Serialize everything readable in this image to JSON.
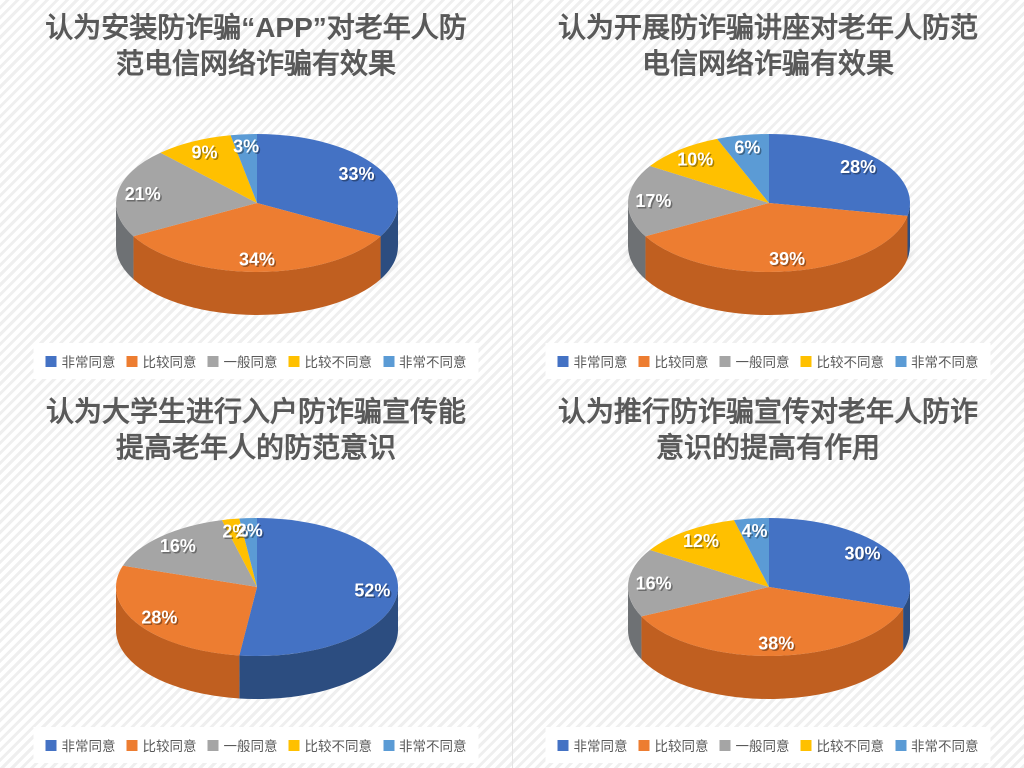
{
  "page": {
    "background_stripe_light": "#ffffff",
    "background_stripe_dark": "#efefef",
    "divider_color": "#e4e4e4",
    "title_color": "#595959",
    "legend_text_color": "#595959",
    "legend_background": "#ffffff",
    "data_label_color": "#ffffff"
  },
  "palette": {
    "series": [
      {
        "name": "非常同意",
        "top": "#4472C4",
        "side": "#2C4D80"
      },
      {
        "name": "比较同意",
        "top": "#ED7D31",
        "side": "#C05F20"
      },
      {
        "name": "一般同意",
        "top": "#A5A5A5",
        "side": "#6E7174"
      },
      {
        "name": "比较不同意",
        "top": "#FFC000",
        "side": "#B98A00"
      },
      {
        "name": "非常不同意",
        "top": "#5B9BD5",
        "side": "#3F6E99"
      }
    ]
  },
  "chart_data": [
    {
      "type": "pie",
      "style": "3d",
      "title": "认为安装防诈骗“APP”对老年人防范电信网络诈骗有效果",
      "title_lines": [
        "认为安装防诈骗“APP”对老年人防",
        "范电信网络诈骗有效果"
      ],
      "categories": [
        "非常同意",
        "比较同意",
        "一般同意",
        "比较不同意",
        "非常不同意"
      ],
      "values": [
        33,
        34,
        21,
        9,
        3
      ],
      "labels": [
        "33%",
        "34%",
        "21%",
        "9%",
        "3%"
      ],
      "legend_position": "bottom"
    },
    {
      "type": "pie",
      "style": "3d",
      "title": "认为开展防诈骗讲座对老年人防范电信网络诈骗有效果",
      "title_lines": [
        "认为开展防诈骗讲座对老年人防范",
        "电信网络诈骗有效果"
      ],
      "categories": [
        "非常同意",
        "比较同意",
        "一般同意",
        "比较不同意",
        "非常不同意"
      ],
      "values": [
        28,
        39,
        17,
        10,
        6
      ],
      "labels": [
        "28%",
        "39%",
        "17%",
        "10%",
        "6%"
      ],
      "legend_position": "bottom"
    },
    {
      "type": "pie",
      "style": "3d",
      "title": "认为大学生进行入户防诈骗宣传能提高老年人的防范意识",
      "title_lines": [
        "认为大学生进行入户防诈骗宣传能",
        "提高老年人的防范意识"
      ],
      "categories": [
        "非常同意",
        "比较同意",
        "一般同意",
        "比较不同意",
        "非常不同意"
      ],
      "values": [
        52,
        28,
        16,
        2,
        2
      ],
      "labels": [
        "52%",
        "28%",
        "16%",
        "2%",
        "2%"
      ],
      "legend_position": "bottom"
    },
    {
      "type": "pie",
      "style": "3d",
      "title": "认为推行防诈骗宣传对老年人防诈意识的提高有作用",
      "title_lines": [
        "认为推行防诈骗宣传对老年人防诈",
        "意识的提高有作用"
      ],
      "categories": [
        "非常同意",
        "比较同意",
        "一般同意",
        "比较不同意",
        "非常不同意"
      ],
      "values": [
        30,
        38,
        16,
        12,
        4
      ],
      "labels": [
        "30%",
        "38%",
        "16%",
        "12%",
        "4%"
      ],
      "legend_position": "bottom"
    }
  ]
}
